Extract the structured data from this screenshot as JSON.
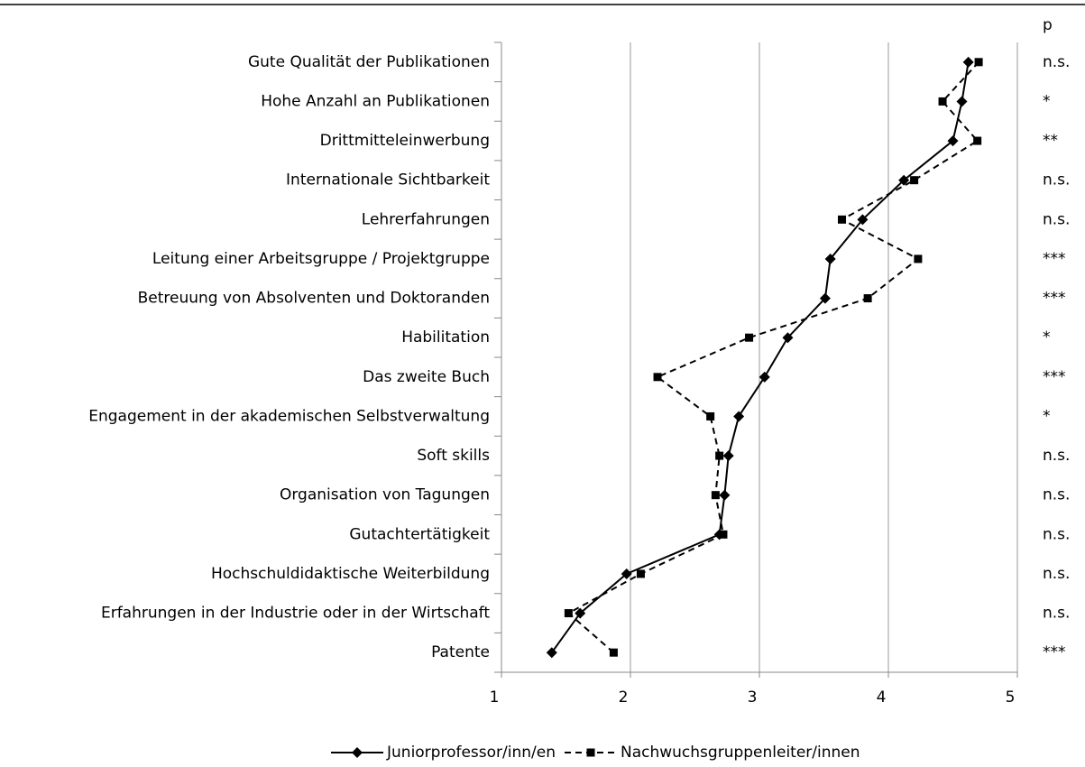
{
  "chart_data": {
    "type": "line",
    "orientation": "horizontal",
    "categories": [
      "Gute Qualität der Publikationen",
      "Hohe Anzahl an  Publikationen",
      "Drittmitteleinwerbung",
      "Internationale Sichtbarkeit",
      "Lehrerfahrungen",
      "Leitung einer Arbeitsgruppe / Projektgruppe",
      "Betreuung von Absolventen und Doktoranden",
      "Habilitation",
      "Das zweite Buch",
      "Engagement in der akademischen Selbstverwaltung",
      "Soft skills",
      "Organisation von Tagungen",
      "Gutachtertätigkeit",
      "Hochschuldidaktische Weiterbildung",
      "Erfahrungen in der Industrie oder in der Wirtschaft",
      "Patente"
    ],
    "series": [
      {
        "name": "Juniorprofessor/inn/en",
        "color": "#000000",
        "line_style": "solid",
        "marker": "diamond",
        "values": [
          4.62,
          4.57,
          4.5,
          4.12,
          3.8,
          3.55,
          3.51,
          3.22,
          3.04,
          2.84,
          2.76,
          2.73,
          2.69,
          1.97,
          1.61,
          1.39
        ]
      },
      {
        "name": "Nachwuchsgruppenleiter/innen",
        "color": "#000000",
        "line_style": "dashed",
        "marker": "square",
        "values": [
          4.7,
          4.42,
          4.69,
          4.2,
          3.64,
          4.23,
          3.84,
          2.92,
          2.21,
          2.62,
          2.69,
          2.66,
          2.72,
          2.08,
          1.52,
          1.87
        ]
      }
    ],
    "xlim": [
      1,
      5
    ],
    "xticks": [
      1,
      2,
      3,
      4,
      5
    ],
    "grid": true,
    "legend": "bottom",
    "p_header": "p",
    "p_values": [
      "n.s.",
      "*",
      "**",
      "n.s.",
      "n.s.",
      "***",
      "***",
      "*",
      "***",
      "*",
      "n.s.",
      "n.s.",
      "n.s.",
      "n.s.",
      "n.s.",
      "***"
    ]
  }
}
